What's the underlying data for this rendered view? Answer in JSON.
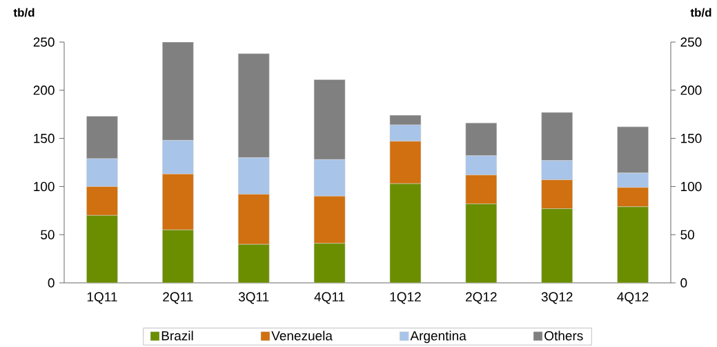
{
  "chart_data": {
    "type": "bar",
    "stacked": true,
    "ylabel": "tb/d",
    "y2label": "tb/d",
    "categories": [
      "1Q11",
      "2Q11",
      "3Q11",
      "4Q11",
      "1Q12",
      "2Q12",
      "3Q12",
      "4Q12"
    ],
    "series": [
      {
        "name": "Brazil",
        "color": "#6a8e00",
        "values": [
          70,
          55,
          40,
          41,
          103,
          82,
          77,
          79
        ]
      },
      {
        "name": "Venezuela",
        "color": "#d07010",
        "values": [
          30,
          58,
          52,
          49,
          44,
          30,
          30,
          20
        ]
      },
      {
        "name": "Argentina",
        "color": "#a8c4e8",
        "values": [
          29,
          35,
          38,
          38,
          17,
          20,
          20,
          15
        ]
      },
      {
        "name": "Others",
        "color": "#808080",
        "values": [
          44,
          102,
          108,
          83,
          10,
          34,
          50,
          48
        ]
      }
    ],
    "ylim": [
      0,
      250
    ],
    "yticks": [
      0,
      50,
      100,
      150,
      200,
      250
    ],
    "y2lim": [
      0,
      250
    ],
    "y2ticks": [
      0,
      50,
      100,
      150,
      200,
      250
    ],
    "grid": false,
    "legend": "bottom"
  }
}
